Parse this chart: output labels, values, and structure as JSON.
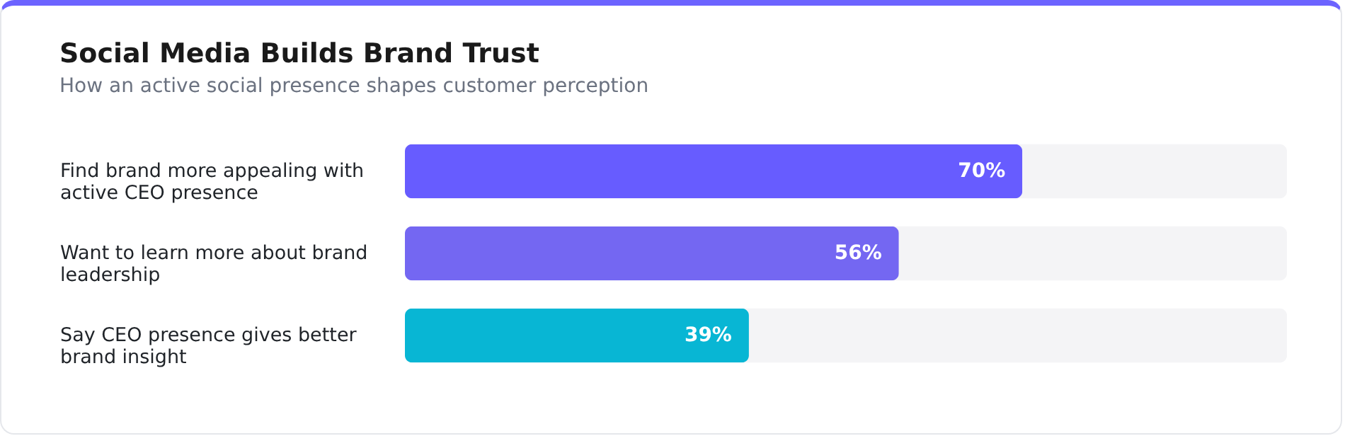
{
  "chart_data": {
    "type": "bar",
    "orientation": "horizontal",
    "title": "Social Media Builds Brand Trust",
    "subtitle": "How an active social presence shapes customer perception",
    "categories": [
      "Find brand more appealing with active CEO presence",
      "Want to learn more about brand leadership",
      "Say CEO presence gives better brand insight"
    ],
    "values": [
      70,
      56,
      39
    ],
    "colors": [
      "#675cff",
      "#7467f2",
      "#08b6d4"
    ],
    "value_labels": [
      "70%",
      "56%",
      "39%"
    ],
    "xlim": [
      0,
      100
    ],
    "tick_labels": "y"
  }
}
